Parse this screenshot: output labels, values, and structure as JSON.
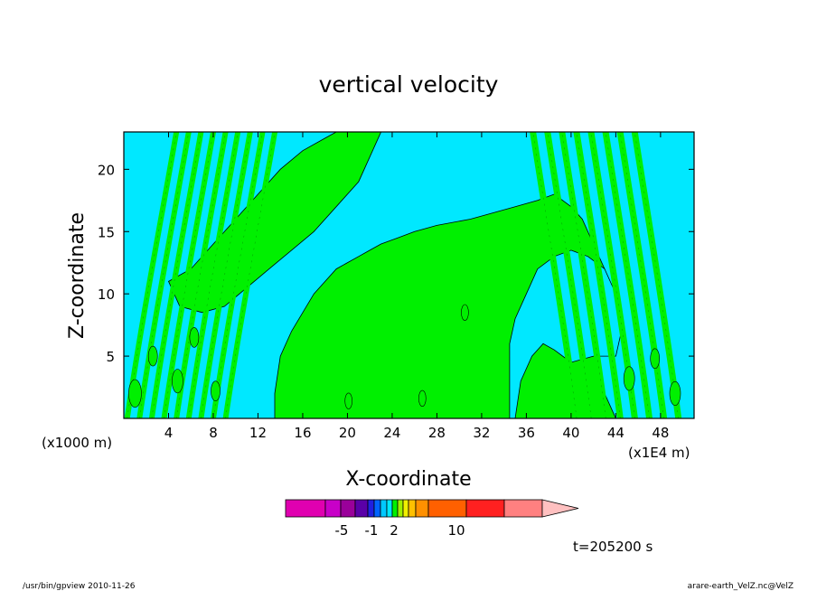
{
  "chart_data": {
    "type": "heatmap",
    "title": "vertical velocity",
    "xlabel": "X-coordinate",
    "ylabel": "Z-coordinate",
    "x_unit_left": "(x1000 m)",
    "x_unit_right": "(x1E4 m)",
    "xlim": [
      0,
      51
    ],
    "ylim": [
      0,
      23
    ],
    "x_ticks": [
      "4",
      "8",
      "12",
      "16",
      "20",
      "24",
      "28",
      "32",
      "36",
      "40",
      "44",
      "48"
    ],
    "y_ticks": [
      "5",
      "10",
      "15",
      "20"
    ],
    "field_colors": {
      "negative": "#00e8ff",
      "positive": "#00f000"
    },
    "green_region_main": [
      [
        13.5,
        0
      ],
      [
        13.5,
        2
      ],
      [
        14,
        5
      ],
      [
        15,
        7
      ],
      [
        17,
        10
      ],
      [
        19,
        12
      ],
      [
        21,
        13
      ],
      [
        22,
        13.5
      ],
      [
        23,
        14
      ],
      [
        24.5,
        14.5
      ],
      [
        26,
        15
      ],
      [
        28,
        15.5
      ],
      [
        31,
        16
      ],
      [
        33,
        16.5
      ],
      [
        35,
        17
      ],
      [
        37,
        17.5
      ],
      [
        38.5,
        18
      ],
      [
        40,
        17
      ],
      [
        41,
        16
      ],
      [
        42,
        14
      ],
      [
        43,
        12
      ],
      [
        43.5,
        10
      ],
      [
        43,
        8
      ],
      [
        42.5,
        5
      ],
      [
        43,
        2
      ],
      [
        44,
        0
      ]
    ],
    "cyan_hole_main": [
      [
        35,
        0
      ],
      [
        35.5,
        3
      ],
      [
        36.5,
        5
      ],
      [
        37.5,
        6
      ],
      [
        38.5,
        5.5
      ],
      [
        40,
        4.5
      ],
      [
        42,
        5
      ],
      [
        44,
        5
      ],
      [
        44.5,
        7
      ],
      [
        44,
        10
      ],
      [
        43,
        12
      ],
      [
        41.5,
        13
      ],
      [
        40,
        13.5
      ],
      [
        38.5,
        13
      ],
      [
        37,
        12
      ],
      [
        36,
        10
      ],
      [
        35,
        8
      ],
      [
        34.5,
        6
      ],
      [
        34.5,
        3
      ],
      [
        34.5,
        0
      ]
    ],
    "green_region_upper_left": [
      [
        4,
        11
      ],
      [
        6,
        12
      ],
      [
        8,
        14
      ],
      [
        10,
        16
      ],
      [
        12,
        18
      ],
      [
        14,
        20
      ],
      [
        16,
        21.5
      ],
      [
        18,
        22.5
      ],
      [
        19,
        23
      ],
      [
        23,
        23
      ],
      [
        22,
        21
      ],
      [
        21,
        19
      ],
      [
        19,
        17
      ],
      [
        17,
        15
      ],
      [
        15,
        13.5
      ],
      [
        13,
        12
      ],
      [
        11,
        10.5
      ],
      [
        9,
        9
      ],
      [
        7,
        8.5
      ],
      [
        5,
        9
      ]
    ],
    "colorbar": {
      "colors": [
        "#e000b0",
        "#c800c8",
        "#9a009a",
        "#5a00a8",
        "#2020e0",
        "#0064ff",
        "#00c8ff",
        "#00e8ff",
        "#00f000",
        "#a0f000",
        "#f0f000",
        "#ffc000",
        "#ff9000",
        "#ff6000",
        "#ff2020",
        "#ff8080",
        "#ffc0c0"
      ],
      "labels": [
        "-5",
        "-1",
        "2",
        "10"
      ]
    },
    "time_label": "t=205200 s",
    "footer_left": "/usr/bin/gpview  2010-11-26",
    "footer_right": "arare-earth_VelZ.nc@VelZ"
  }
}
